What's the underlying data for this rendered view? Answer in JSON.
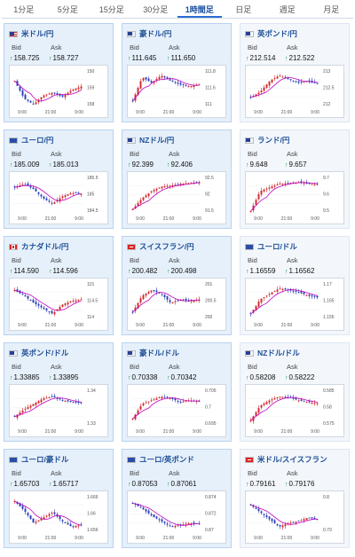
{
  "tabs": [
    {
      "label": "1分足"
    },
    {
      "label": "5分足"
    },
    {
      "label": "15分足"
    },
    {
      "label": "30分足"
    },
    {
      "label": "1時間足",
      "active": true
    },
    {
      "label": "日足"
    },
    {
      "label": "週足"
    },
    {
      "label": "月足"
    }
  ],
  "colors": {
    "up": "#d0282c",
    "down": "#2a3fb8",
    "ma": "#c000c0",
    "accent": "#1e4f95"
  },
  "quote_labels": {
    "bid": "Bid",
    "ask": "Ask"
  },
  "pairs": [
    {
      "name": "米ドル/円",
      "flag": "us",
      "bid": "158.725",
      "ask": "158.727",
      "ticks": [
        "150",
        "159",
        "158"
      ],
      "xticks": [
        "9:00",
        "21:00",
        "9:00"
      ],
      "shape": [
        0.3,
        0.78,
        0.95,
        0.7,
        0.62,
        0.74,
        0.55,
        0.45
      ]
    },
    {
      "name": "豪ドル/円",
      "flag": "au",
      "bid": "111.645",
      "ask": "111.650",
      "ticks": [
        "111.8",
        "111.6",
        "111"
      ],
      "xticks": [
        "9:00",
        "21:00",
        "9:00"
      ],
      "shape": [
        0.85,
        0.2,
        0.35,
        0.15,
        0.3,
        0.4,
        0.45,
        0.38
      ]
    },
    {
      "name": "英ポンド/円",
      "flag": "gb",
      "bid": "212.514",
      "ask": "212.522",
      "ticks": [
        "213",
        "212.5",
        "212"
      ],
      "xticks": [
        "9:00",
        "21:00",
        "9:00"
      ],
      "shape": [
        0.75,
        0.6,
        0.3,
        0.15,
        0.25,
        0.35,
        0.3,
        0.38
      ]
    },
    {
      "name": "ユーロ/円",
      "flag": "eu",
      "bid": "185.009",
      "ask": "185.013",
      "ticks": [
        "185.5",
        "185",
        "184.5"
      ],
      "xticks": [
        "9:00",
        "21:00",
        "9:00"
      ],
      "shape": [
        0.3,
        0.2,
        0.35,
        0.6,
        0.75,
        0.55,
        0.45,
        0.48
      ]
    },
    {
      "name": "NZドル/円",
      "flag": "nz",
      "bid": "92.399",
      "ask": "92.406",
      "ticks": [
        "92.5",
        "92",
        "91.5"
      ],
      "xticks": [
        "9:00",
        "21:00",
        "9:00"
      ],
      "shape": [
        0.9,
        0.6,
        0.4,
        0.28,
        0.25,
        0.2,
        0.18,
        0.15
      ]
    },
    {
      "name": "ランド/円",
      "flag": "za",
      "bid": "9.648",
      "ask": "9.657",
      "ticks": [
        "9.7",
        "9.6",
        "9.5"
      ],
      "xticks": [
        "9:00",
        "21:00",
        "9:00"
      ],
      "shape": [
        0.95,
        0.4,
        0.3,
        0.2,
        0.18,
        0.15,
        0.2,
        0.22
      ]
    },
    {
      "name": "カナダドル/円",
      "flag": "ca",
      "bid": "114.590",
      "ask": "114.596",
      "ticks": [
        "115",
        "114.5",
        "114"
      ],
      "xticks": [
        "9:00",
        "21:00",
        "9:00"
      ],
      "shape": [
        0.2,
        0.35,
        0.55,
        0.7,
        0.85,
        0.6,
        0.5,
        0.45
      ]
    },
    {
      "name": "スイスフラン/円",
      "flag": "ch",
      "bid": "200.482",
      "ask": "200.498",
      "ticks": [
        "201",
        "200.5",
        "200"
      ],
      "xticks": [
        "9:00",
        "21:00",
        "9:00"
      ],
      "shape": [
        0.8,
        0.35,
        0.2,
        0.3,
        0.55,
        0.45,
        0.5,
        0.45
      ]
    },
    {
      "name": "ユーロ/ドル",
      "flag": "eu",
      "bid": "1.16559",
      "ask": "1.16562",
      "ticks": [
        "1.17",
        "1.165",
        "1.155"
      ],
      "xticks": [
        "9:00",
        "21:00",
        "9:00"
      ],
      "shape": [
        0.85,
        0.45,
        0.3,
        0.15,
        0.2,
        0.25,
        0.35,
        0.4
      ]
    },
    {
      "name": "英ポンド/ドル",
      "flag": "gb",
      "bid": "1.33885",
      "ask": "1.33895",
      "ticks": [
        "1.34",
        "1.33"
      ],
      "xticks": [
        "9:00",
        "21:00",
        "9:00"
      ],
      "shape": [
        0.75,
        0.55,
        0.4,
        0.25,
        0.2,
        0.3,
        0.35,
        0.38
      ]
    },
    {
      "name": "豪ドル/ドル",
      "flag": "au",
      "bid": "0.70338",
      "ask": "0.70342",
      "ticks": [
        "0.705",
        "0.7",
        "0.695"
      ],
      "xticks": [
        "9:00",
        "21:00",
        "9:00"
      ],
      "shape": [
        0.8,
        0.4,
        0.3,
        0.2,
        0.25,
        0.35,
        0.3,
        0.32
      ]
    },
    {
      "name": "NZドル/ドル",
      "flag": "nz",
      "bid": "0.58208",
      "ask": "0.58222",
      "ticks": [
        "0.585",
        "0.58",
        "0.575"
      ],
      "xticks": [
        "9:00",
        "21:00",
        "9:00"
      ],
      "shape": [
        0.85,
        0.45,
        0.3,
        0.2,
        0.22,
        0.3,
        0.35,
        0.38
      ]
    },
    {
      "name": "ユーロ/豪ドル",
      "flag": "eu",
      "bid": "1.65703",
      "ask": "1.65717",
      "ticks": [
        "1.666",
        "1.66",
        "1.656"
      ],
      "xticks": [
        "9:00",
        "21:00",
        "9:00"
      ],
      "shape": [
        0.15,
        0.4,
        0.75,
        0.6,
        0.45,
        0.7,
        0.85,
        0.8
      ]
    },
    {
      "name": "ユーロ/英ポンド",
      "flag": "eu",
      "bid": "0.87053",
      "ask": "0.87061",
      "ticks": [
        "0.874",
        "0.872",
        "0.87"
      ],
      "xticks": [
        "9:00",
        "21:00",
        "9:00"
      ],
      "shape": [
        0.2,
        0.35,
        0.55,
        0.7,
        0.85,
        0.8,
        0.75,
        0.78
      ]
    },
    {
      "name": "米ドル/スイスフラン",
      "flag": "ch",
      "bid": "0.79161",
      "ask": "0.79176",
      "ticks": [
        "0.8",
        "0.79"
      ],
      "xticks": [
        "9:00",
        "21:00",
        "9:00"
      ],
      "shape": [
        0.25,
        0.45,
        0.65,
        0.85,
        0.75,
        0.7,
        0.6,
        0.65
      ]
    }
  ]
}
